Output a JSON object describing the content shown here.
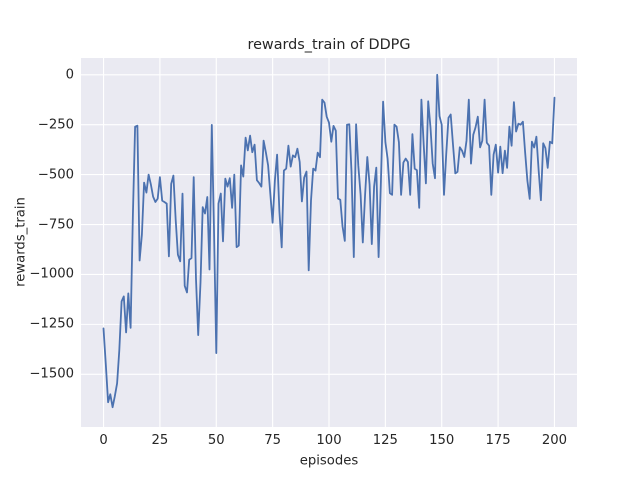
{
  "chart_data": {
    "type": "line",
    "title": "rewards_train of DDPG",
    "xlabel": "episodes",
    "ylabel": "rewards_train",
    "grid": true,
    "legend": null,
    "x_start": 0,
    "x_step": 1,
    "xlim": [
      -10,
      210
    ],
    "ylim": [
      -1764,
      84
    ],
    "xticks": [
      0,
      25,
      50,
      75,
      100,
      125,
      150,
      175,
      200
    ],
    "xtick_labels": [
      "0",
      "25",
      "50",
      "75",
      "100",
      "125",
      "150",
      "175",
      "200"
    ],
    "yticks": [
      0,
      -250,
      -500,
      -750,
      -1000,
      -1250,
      -1500
    ],
    "ytick_labels": [
      "0",
      "−250",
      "−500",
      "−750",
      "−1000",
      "−1250",
      "−1500"
    ],
    "colors": {
      "line": "#4C72B0",
      "plot_bg": "#EAEAF2",
      "grid": "#FFFFFF",
      "text": "#262626",
      "figure_bg": "#FFFFFF"
    },
    "series": [
      {
        "name": "rewards_train",
        "values": [
          -1270,
          -1450,
          -1640,
          -1600,
          -1665,
          -1610,
          -1545,
          -1380,
          -1135,
          -1110,
          -1290,
          -1095,
          -1267,
          -700,
          -260,
          -255,
          -930,
          -800,
          -540,
          -590,
          -500,
          -550,
          -610,
          -637,
          -620,
          -513,
          -630,
          -637,
          -645,
          -909,
          -546,
          -505,
          -728,
          -901,
          -934,
          -595,
          -1057,
          -1090,
          -926,
          -918,
          -513,
          -1024,
          -1304,
          -1041,
          -663,
          -695,
          -612,
          -975,
          -251,
          -778,
          -1394,
          -645,
          -595,
          -834,
          -520,
          -560,
          -518,
          -666,
          -500,
          -863,
          -855,
          -454,
          -510,
          -315,
          -379,
          -305,
          -388,
          -350,
          -528,
          -542,
          -560,
          -330,
          -390,
          -454,
          -601,
          -741,
          -528,
          -400,
          -684,
          -864,
          -480,
          -470,
          -355,
          -460,
          -404,
          -413,
          -370,
          -437,
          -634,
          -515,
          -485,
          -979,
          -630,
          -470,
          -480,
          -390,
          -413,
          -125,
          -140,
          -210,
          -240,
          -335,
          -256,
          -280,
          -620,
          -626,
          -758,
          -832,
          -250,
          -248,
          -485,
          -913,
          -248,
          -455,
          -600,
          -840,
          -600,
          -412,
          -550,
          -848,
          -560,
          -465,
          -913,
          -536,
          -135,
          -338,
          -420,
          -593,
          -601,
          -250,
          -260,
          -338,
          -601,
          -440,
          -420,
          -437,
          -601,
          -297,
          -470,
          -478,
          -666,
          -125,
          -350,
          -544,
          -133,
          -264,
          -445,
          -518,
          0,
          -207,
          -250,
          -601,
          -400,
          -215,
          -199,
          -350,
          -494,
          -486,
          -363,
          -380,
          -412,
          -330,
          -125,
          -445,
          -300,
          -264,
          -210,
          -363,
          -330,
          -125,
          -340,
          -355,
          -601,
          -400,
          -350,
          -490,
          -360,
          -493,
          -380,
          -466,
          -260,
          -355,
          -137,
          -284,
          -245,
          -250,
          -235,
          -387,
          -531,
          -621,
          -335,
          -364,
          -310,
          -483,
          -628,
          -343,
          -367,
          -466,
          -335,
          -343,
          -115
        ]
      }
    ]
  }
}
